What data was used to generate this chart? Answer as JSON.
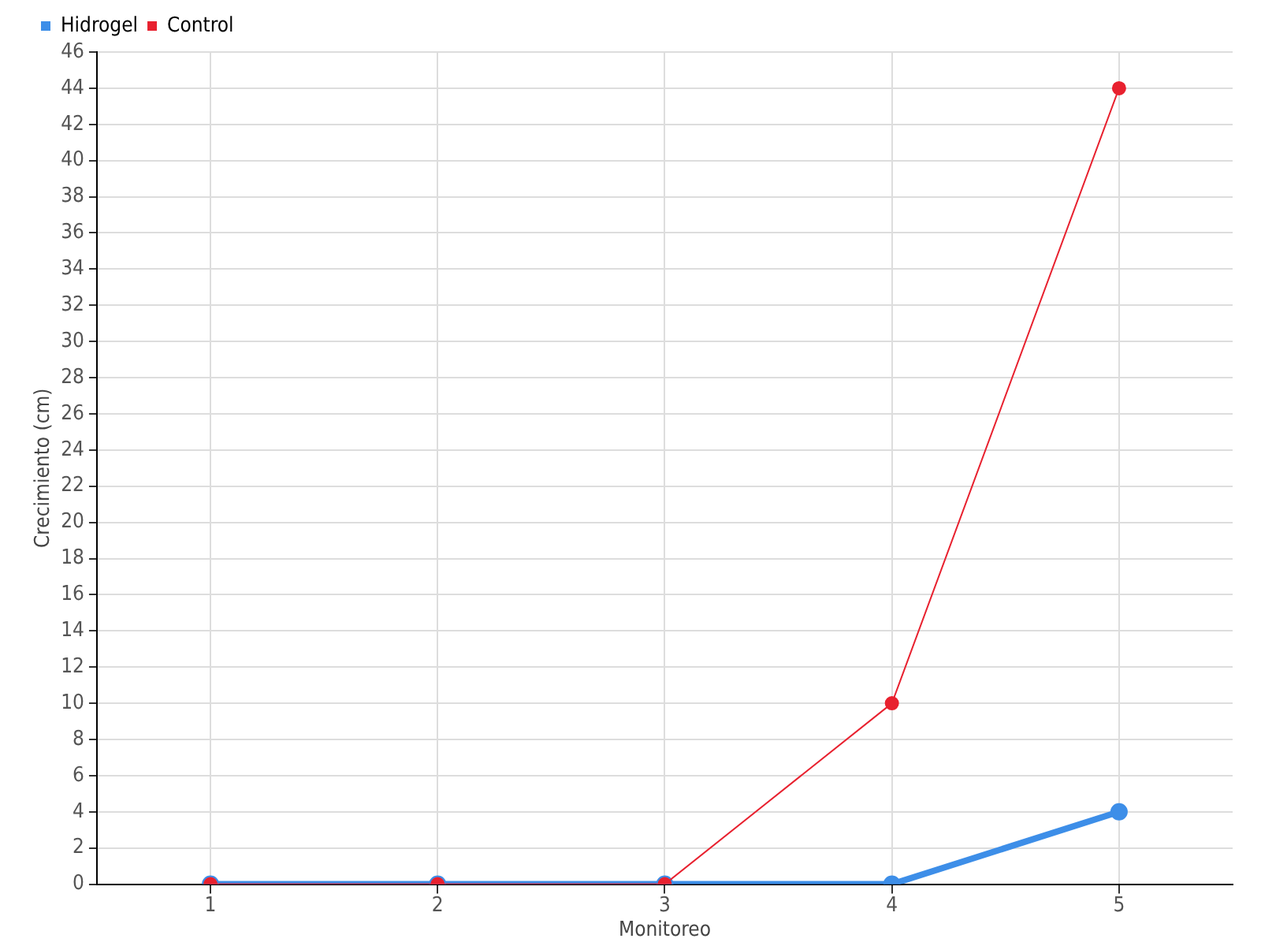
{
  "chart_data": {
    "type": "line",
    "xlabel": "Monitoreo",
    "ylabel": "Crecimiento (cm)",
    "categories": [
      "1",
      "2",
      "3",
      "4",
      "5"
    ],
    "series": [
      {
        "name": "Hidrogel",
        "color": "#3d8ee8",
        "values": [
          0,
          0,
          0,
          0,
          4
        ]
      },
      {
        "name": "Control",
        "color": "#e8212f",
        "values": [
          0,
          0,
          0,
          10,
          44
        ]
      }
    ],
    "ylim": [
      0,
      46
    ],
    "yticks": [
      0,
      2,
      4,
      6,
      8,
      10,
      12,
      14,
      16,
      18,
      20,
      22,
      24,
      26,
      28,
      30,
      32,
      34,
      36,
      38,
      40,
      42,
      44,
      46
    ],
    "grid": true,
    "legend": "top left",
    "marker": "circle",
    "line_style": "solid"
  }
}
